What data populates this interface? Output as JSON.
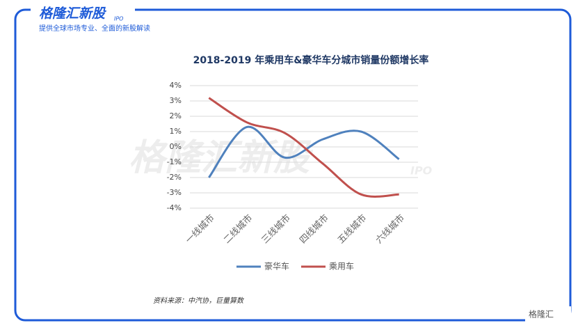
{
  "header": {
    "logo": "格隆汇新股",
    "logo_tag": "IPO",
    "slogan": "提供全球市场专业、全面的新股解读"
  },
  "watermark": {
    "text": "格隆汇新股",
    "tag": "IPO"
  },
  "badge": "格隆汇",
  "chart_data": {
    "type": "line",
    "title": "2018-2019 年乘用车&豪华车分城市销量份额增长率",
    "categories": [
      "一线城市",
      "二线城市",
      "三线城市",
      "四线城市",
      "五线城市",
      "六线城市"
    ],
    "series": [
      {
        "name": "豪华车",
        "color": "#4f81bd",
        "values": [
          -2,
          1.3,
          -0.7,
          0.5,
          1.0,
          -0.8
        ]
      },
      {
        "name": "乘用车",
        "color": "#c0504d",
        "values": [
          3.2,
          1.6,
          0.9,
          -1.1,
          -3.1,
          -3.1
        ]
      }
    ],
    "ylim": [
      -4,
      4
    ],
    "yticks": [
      {
        "value": -4,
        "label": "-4%"
      },
      {
        "value": -3,
        "label": "-3%"
      },
      {
        "value": -2,
        "label": "-2%"
      },
      {
        "value": -1,
        "label": "-1%"
      },
      {
        "value": 0,
        "label": "0%"
      },
      {
        "value": 1,
        "label": "1%"
      },
      {
        "value": 2,
        "label": "2%"
      },
      {
        "value": 3,
        "label": "3%"
      },
      {
        "value": 4,
        "label": "4%"
      }
    ],
    "grid": true,
    "smooth": true,
    "legend": "bottom",
    "source": "资料来源：中汽协，巨量算数"
  }
}
